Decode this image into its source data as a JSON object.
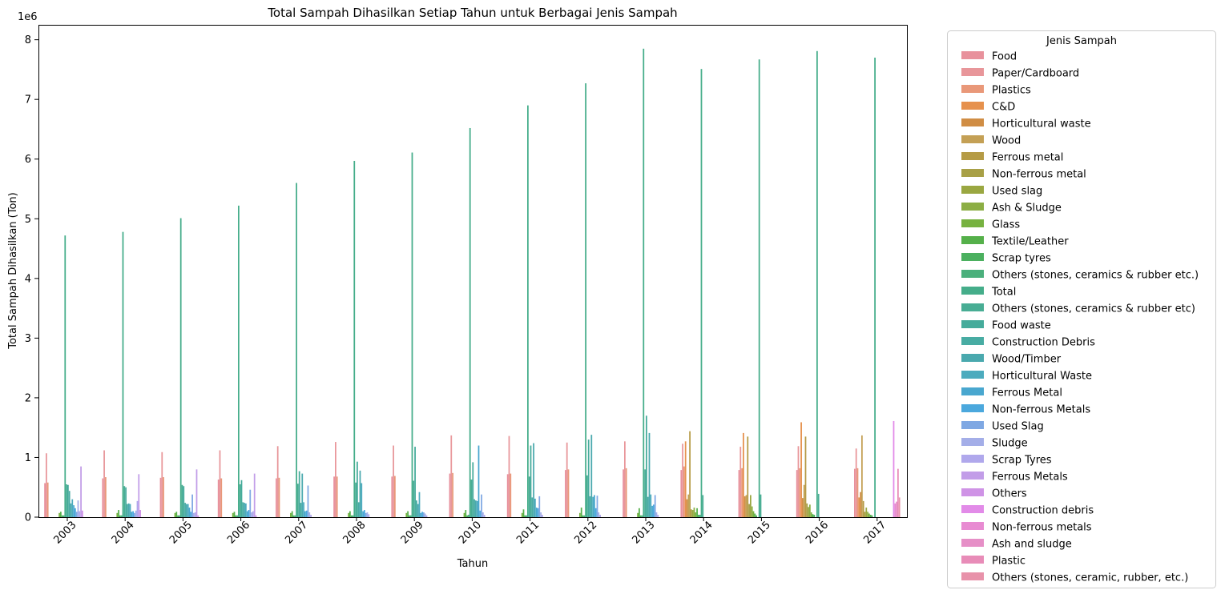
{
  "chart_data": {
    "type": "bar",
    "title": "Total Sampah Dihasilkan Setiap Tahun untuk Berbagai Jenis Sampah",
    "xlabel": "Tahun",
    "ylabel": "Total Sampah Dihasilkan (Ton)",
    "y_offset_label": "1e6",
    "ylim": [
      0,
      8.25
    ],
    "y_ticks": [
      "0",
      "1",
      "2",
      "3",
      "4",
      "5",
      "6",
      "7",
      "8"
    ],
    "grid": false,
    "legend_title": "Jenis Sampah",
    "legend_position": "outside-right",
    "categories": [
      "2003",
      "2004",
      "2005",
      "2006",
      "2007",
      "2008",
      "2009",
      "2010",
      "2011",
      "2012",
      "2013",
      "2014",
      "2015",
      "2016",
      "2017"
    ],
    "series": [
      {
        "name": "Food",
        "color": "#e8919c",
        "values": [
          0.57,
          0.65,
          0.66,
          0.63,
          0.65,
          0.68,
          0.68,
          0.73,
          0.72,
          0.79,
          0.8,
          0.79,
          0.79,
          0.79,
          0.81
        ]
      },
      {
        "name": "Paper/Cardboard",
        "color": "#e8969a",
        "values": [
          1.07,
          1.12,
          1.09,
          1.12,
          1.19,
          1.26,
          1.2,
          1.37,
          1.36,
          1.25,
          1.27,
          1.23,
          1.18,
          1.19,
          1.15
        ]
      },
      {
        "name": "Plastics",
        "color": "#e99879",
        "values": [
          0.58,
          0.67,
          0.67,
          0.65,
          0.66,
          0.68,
          0.69,
          0.74,
          0.73,
          0.8,
          0.82,
          0.85,
          0.82,
          0.82,
          0.82
        ]
      },
      {
        "name": "C&D",
        "color": "#e6914d",
        "values": [
          0,
          0,
          0,
          0,
          0,
          0,
          0,
          0,
          0,
          0,
          0,
          1.27,
          1.41,
          1.59,
          0.33
        ]
      },
      {
        "name": "Horticultural waste",
        "color": "#d08d44",
        "values": [
          0,
          0,
          0,
          0,
          0,
          0,
          0,
          0,
          0,
          0,
          0,
          0.3,
          0.35,
          0.32,
          0.42
        ]
      },
      {
        "name": "Wood",
        "color": "#c4a055",
        "values": [
          0,
          0,
          0,
          0,
          0,
          0,
          0,
          0,
          0,
          0,
          0,
          0.38,
          0.37,
          0.54,
          1.37
        ]
      },
      {
        "name": "Ferrous metal",
        "color": "#b59b45",
        "values": [
          0,
          0,
          0,
          0,
          0,
          0,
          0,
          0,
          0,
          0,
          0,
          1.44,
          1.35,
          1.35,
          0.27
        ]
      },
      {
        "name": "Non-ferrous metal",
        "color": "#a8a046",
        "values": [
          0,
          0,
          0,
          0,
          0,
          0,
          0,
          0,
          0,
          0,
          0,
          0.13,
          0.22,
          0.23,
          0.09
        ]
      },
      {
        "name": "Used slag",
        "color": "#9aa741",
        "values": [
          0,
          0,
          0,
          0,
          0,
          0,
          0,
          0,
          0,
          0,
          0,
          0.12,
          0.37,
          0.17,
          0.16
        ]
      },
      {
        "name": "Ash & Sludge",
        "color": "#8cae44",
        "values": [
          0,
          0,
          0,
          0,
          0,
          0,
          0,
          0,
          0,
          0,
          0,
          0.16,
          0.18,
          0.21,
          0.09
        ]
      },
      {
        "name": "Glass",
        "color": "#77b240",
        "values": [
          0.07,
          0.07,
          0.07,
          0.07,
          0.07,
          0.07,
          0.07,
          0.07,
          0.07,
          0.07,
          0.07,
          0.08,
          0.1,
          0.08,
          0.06
        ]
      },
      {
        "name": "Textile/Leather",
        "color": "#55b04a",
        "values": [
          0.09,
          0.12,
          0.09,
          0.09,
          0.1,
          0.1,
          0.1,
          0.12,
          0.13,
          0.16,
          0.15,
          0.15,
          0.06,
          0.05,
          0.04
        ]
      },
      {
        "name": "Scrap tyres",
        "color": "#4bb05f",
        "values": [
          0.03,
          0.03,
          0.03,
          0.03,
          0.03,
          0.03,
          0.03,
          0.03,
          0.03,
          0.03,
          0.03,
          0.04,
          0.03,
          0.04,
          0.03
        ]
      },
      {
        "name": "Others (stones, ceramics & rubber etc.)",
        "color": "#4bb07c",
        "values": [
          0.03,
          0.03,
          0.03,
          0.03,
          0.03,
          0.03,
          0.03,
          0.04,
          0.03,
          0.03,
          0.03,
          0.04,
          0,
          0,
          0
        ]
      },
      {
        "name": "Total",
        "color": "#45ad8a",
        "values": [
          4.72,
          4.78,
          5.01,
          5.22,
          5.6,
          5.97,
          6.11,
          6.52,
          6.9,
          7.27,
          7.85,
          7.51,
          7.67,
          7.81,
          7.7
        ]
      },
      {
        "name": "Others (stones, ceramics & rubber etc)",
        "color": "#48ad94",
        "values": [
          0.55,
          0.52,
          0.54,
          0.55,
          0.56,
          0.58,
          0.61,
          0.63,
          0.68,
          0.7,
          0.8,
          0.37,
          0.38,
          0.39,
          0
        ]
      },
      {
        "name": "Food waste",
        "color": "#45ab9b",
        "values": [
          0.54,
          0.5,
          0.52,
          0.62,
          0.77,
          0.93,
          1.18,
          0.92,
          1.2,
          1.3,
          1.7,
          0,
          0,
          0,
          0
        ]
      },
      {
        "name": "Construction Debris",
        "color": "#48aca3",
        "values": [
          0.44,
          0.22,
          0.24,
          0.25,
          0.24,
          0.25,
          0.28,
          0.3,
          0.33,
          0.35,
          0.34,
          0,
          0,
          0,
          0
        ]
      },
      {
        "name": "Wood/Timber",
        "color": "#4aa9ae",
        "values": [
          0.23,
          0.23,
          0.22,
          0.24,
          0.73,
          0.78,
          0.22,
          0.28,
          1.24,
          1.38,
          1.41,
          0,
          0,
          0,
          0
        ]
      },
      {
        "name": "Horticultural Waste",
        "color": "#4cabbe",
        "values": [
          0.3,
          0.22,
          0.22,
          0.23,
          0.25,
          0.57,
          0.42,
          0.27,
          0.31,
          0.34,
          0.38,
          0,
          0,
          0,
          0
        ]
      },
      {
        "name": "Ferrous Metal",
        "color": "#49a7cf",
        "values": [
          0.2,
          0.09,
          0.16,
          0.1,
          0.1,
          0.1,
          0.07,
          1.2,
          0.16,
          0.37,
          0.19,
          0,
          0,
          0,
          0
        ]
      },
      {
        "name": "Non-ferrous Metals",
        "color": "#4ba8dd",
        "values": [
          0.15,
          0.1,
          0.09,
          0.12,
          0.11,
          0.12,
          0.09,
          0.11,
          0.15,
          0.15,
          0.21,
          0,
          0,
          0,
          0
        ]
      },
      {
        "name": "Used Slag",
        "color": "#7fa8e3",
        "values": [
          0.09,
          0.07,
          0.38,
          0.46,
          0.53,
          0.07,
          0.08,
          0.38,
          0.35,
          0.36,
          0.37,
          0,
          0,
          0,
          0
        ]
      },
      {
        "name": "Sludge",
        "color": "#a4aee8",
        "values": [
          0.28,
          0.11,
          0.07,
          0.08,
          0.08,
          0.08,
          0.06,
          0.08,
          0.08,
          0.08,
          0.08,
          0,
          0,
          0,
          0
        ]
      },
      {
        "name": "Scrap Tyres",
        "color": "#b0a8ec",
        "values": [
          0.1,
          0.27,
          0.08,
          0.1,
          0.04,
          0.05,
          0.03,
          0.04,
          0.04,
          0.04,
          0.04,
          0,
          0,
          0,
          0
        ]
      },
      {
        "name": "Ferrous Metals",
        "color": "#c29de8",
        "values": [
          0.85,
          0.72,
          0.8,
          0.73,
          0,
          0,
          0,
          0,
          0,
          0,
          0,
          0,
          0,
          0,
          0
        ]
      },
      {
        "name": "Others",
        "color": "#cf93e6",
        "values": [
          0.11,
          0.12,
          0.03,
          0.03,
          0,
          0,
          0,
          0,
          0,
          0,
          0,
          0,
          0,
          0,
          0
        ]
      },
      {
        "name": "Construction debris",
        "color": "#e28be8",
        "values": [
          0,
          0,
          0,
          0,
          0,
          0,
          0,
          0,
          0,
          0,
          0,
          0,
          0,
          0,
          1.61
        ]
      },
      {
        "name": "Non-ferrous metals",
        "color": "#e88bd2",
        "values": [
          0,
          0,
          0,
          0,
          0,
          0,
          0,
          0,
          0,
          0,
          0,
          0,
          0,
          0,
          0.23
        ]
      },
      {
        "name": "Ash and sludge",
        "color": "#e68fc7",
        "values": [
          0,
          0,
          0,
          0,
          0,
          0,
          0,
          0,
          0,
          0,
          0,
          0,
          0,
          0,
          0.26
        ]
      },
      {
        "name": "Plastic",
        "color": "#e88cb8",
        "values": [
          0,
          0,
          0,
          0,
          0,
          0,
          0,
          0,
          0,
          0,
          0,
          0,
          0,
          0,
          0.81
        ]
      },
      {
        "name": "Others (stones, ceramic, rubber, etc.)",
        "color": "#e892aa",
        "values": [
          0,
          0,
          0,
          0,
          0,
          0,
          0,
          0,
          0,
          0,
          0,
          0,
          0,
          0,
          0.33
        ]
      }
    ]
  }
}
